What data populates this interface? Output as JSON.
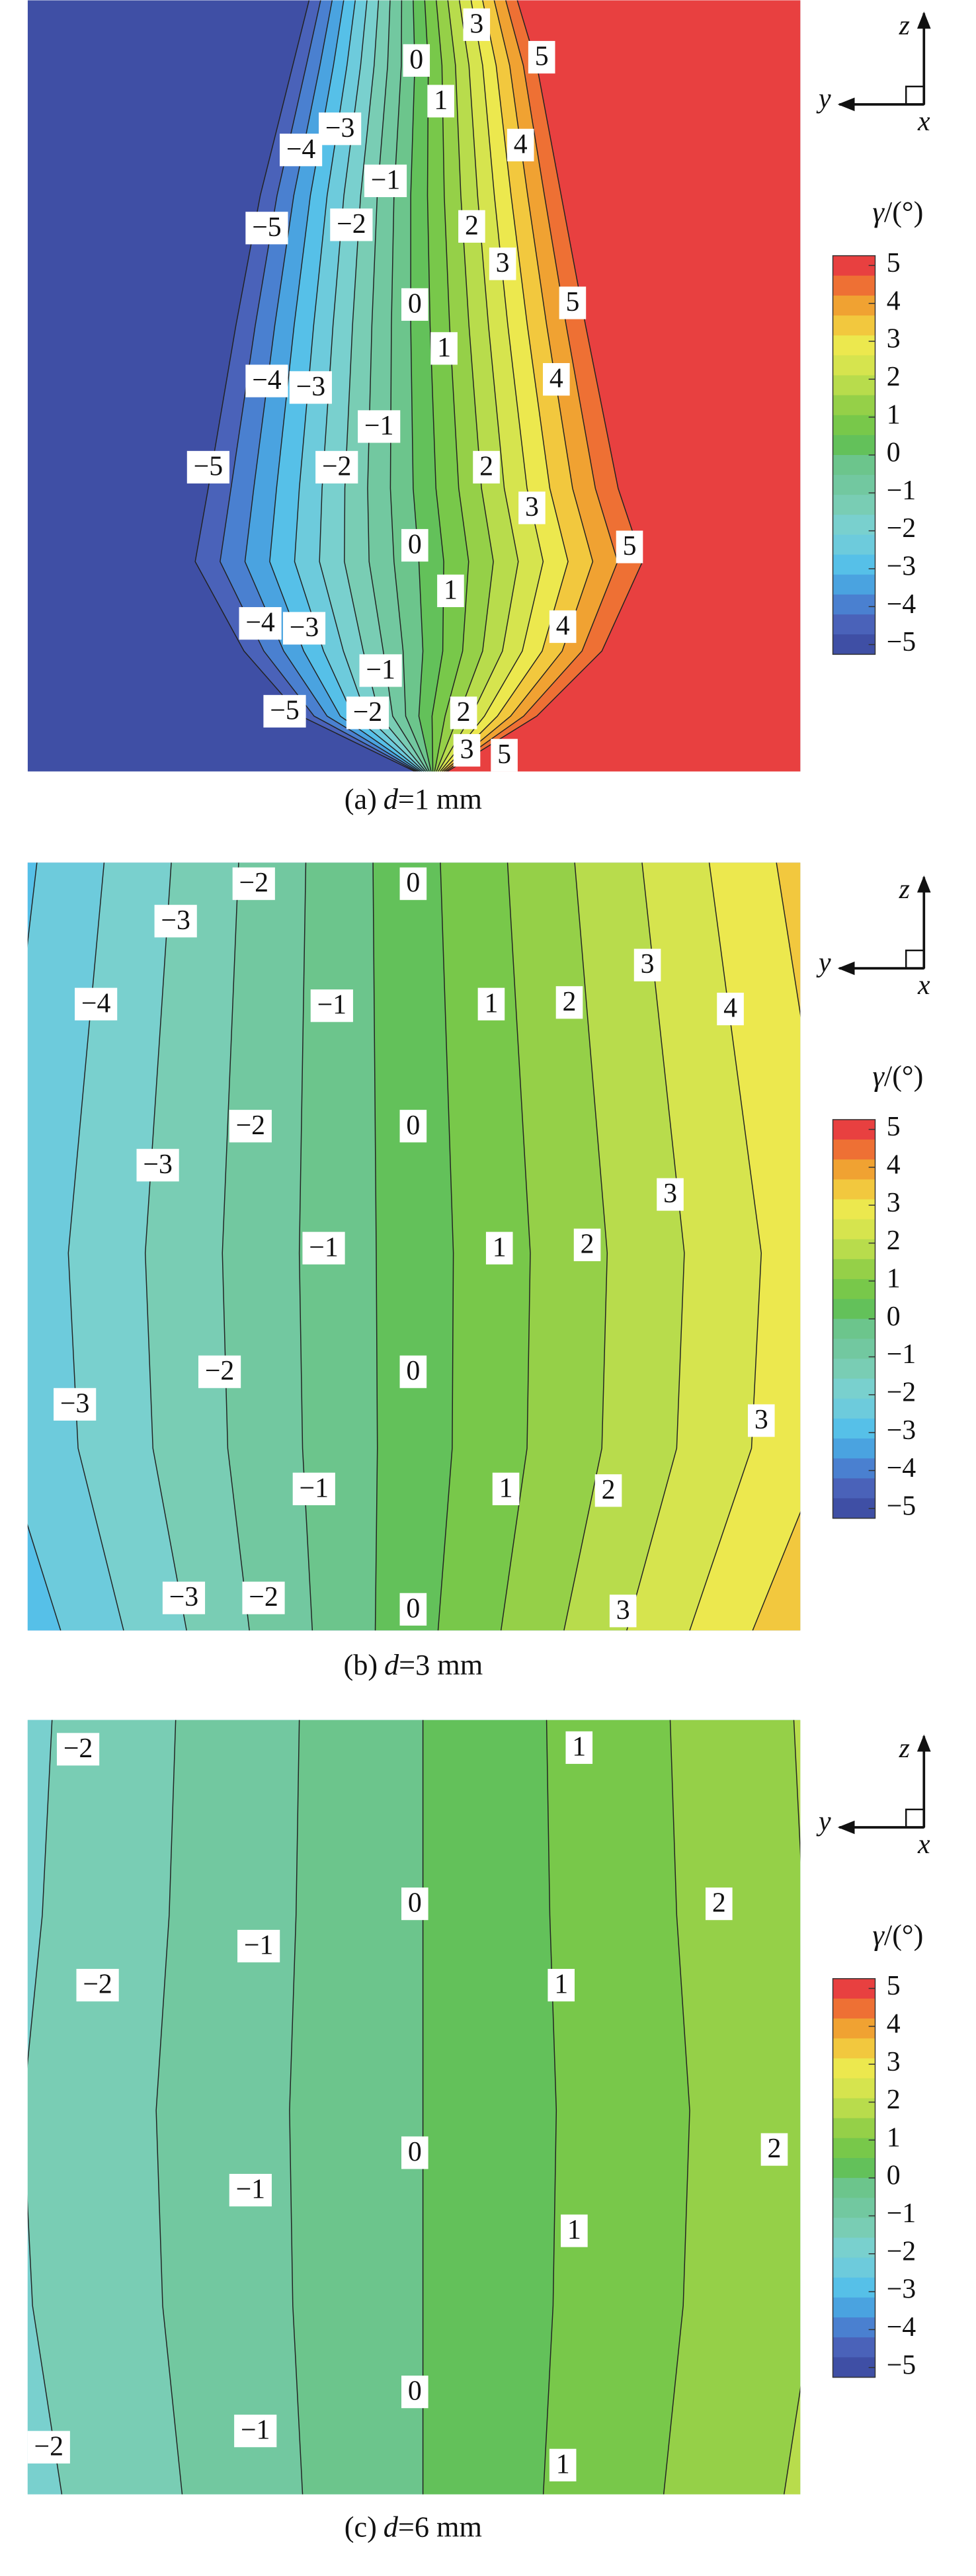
{
  "panels": [
    {
      "caption": {
        "prefix": "(a)",
        "variable": "d",
        "rest": "=1 mm"
      },
      "axes": {
        "z": "z",
        "y": "y",
        "x": "x"
      },
      "colorbar": {
        "symbol": "γ",
        "unit": "/(°)",
        "ticks": [
          "5",
          "4",
          "3",
          "2",
          "1",
          "0",
          "−1",
          "−2",
          "−3",
          "−4",
          "−5"
        ]
      },
      "contour_labels": [
        "3",
        "0",
        "5",
        "1",
        "−4",
        "−3",
        "4",
        "−1",
        "−5",
        "−2",
        "2",
        "3",
        "0",
        "5",
        "1",
        "−4",
        "−3",
        "4",
        "−1",
        "−5",
        "−2",
        "2",
        "3",
        "0",
        "5",
        "1",
        "−4",
        "−3",
        "4",
        "−1",
        "−5",
        "−2",
        "2",
        "3",
        "5"
      ]
    },
    {
      "caption": {
        "prefix": "(b)",
        "variable": "d",
        "rest": "=3 mm"
      },
      "axes": {
        "z": "z",
        "y": "y",
        "x": "x"
      },
      "colorbar": {
        "symbol": "γ",
        "unit": "/(°)",
        "ticks": [
          "5",
          "4",
          "3",
          "2",
          "1",
          "0",
          "−1",
          "−2",
          "−3",
          "−4",
          "−5"
        ]
      },
      "contour_labels": [
        "−2",
        "0",
        "−3",
        "3",
        "−4",
        "−1",
        "1",
        "2",
        "4",
        "−2",
        "0",
        "−3",
        "3",
        "−1",
        "1",
        "2",
        "−2",
        "0",
        "−3",
        "3",
        "−1",
        "1",
        "2",
        "−3",
        "−2",
        "0",
        "3"
      ]
    },
    {
      "caption": {
        "prefix": "(c)",
        "variable": "d",
        "rest": "=6 mm"
      },
      "axes": {
        "z": "z",
        "y": "y",
        "x": "x"
      },
      "colorbar": {
        "symbol": "γ",
        "unit": "/(°)",
        "ticks": [
          "5",
          "4",
          "3",
          "2",
          "1",
          "0",
          "−1",
          "−2",
          "−3",
          "−4",
          "−5"
        ]
      },
      "contour_labels": [
        "−2",
        "1",
        "0",
        "2",
        "−1",
        "−2",
        "1",
        "0",
        "2",
        "−1",
        "1",
        "0",
        "−1",
        "−2",
        "1"
      ]
    }
  ]
}
